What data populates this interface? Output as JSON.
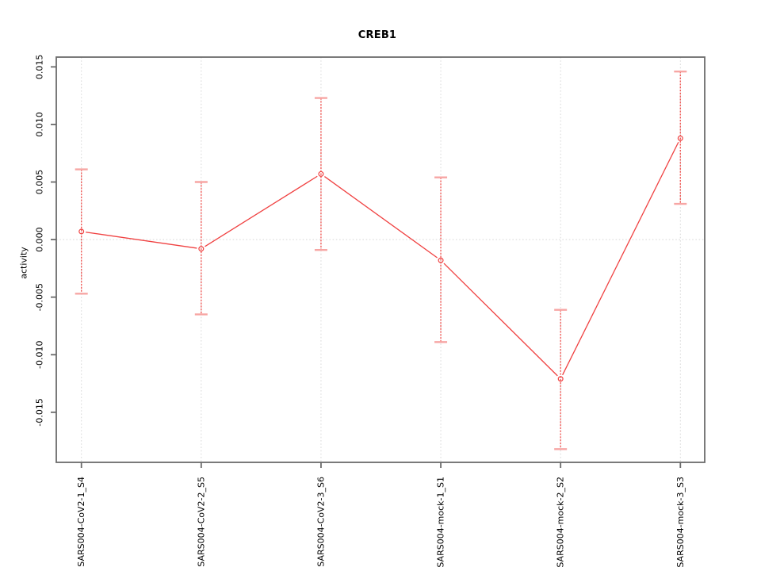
{
  "page": {
    "background": "#ffffff"
  },
  "chart_data": {
    "type": "line",
    "subtype": "errorbar-ci-plot",
    "title": "CREB1",
    "xlabel": "",
    "ylabel": "activity",
    "categories": [
      "SARS004-CoV2-1_S4",
      "SARS004-CoV2-2_S5",
      "SARS004-CoV2-3_S6",
      "SARS004-mock-1_S1",
      "SARS004-mock-2_S2",
      "SARS004-mock-3_S3"
    ],
    "series": [
      {
        "name": "CREB1 activity",
        "values": [
          0.0007,
          -0.0008,
          0.0057,
          -0.0018,
          -0.0121,
          0.0088
        ],
        "upper": [
          0.0061,
          0.005,
          0.0123,
          0.0054,
          -0.0061,
          0.0146
        ],
        "lower": [
          -0.0047,
          -0.0065,
          -0.0009,
          -0.0089,
          -0.0182,
          0.0031
        ]
      }
    ],
    "y_tick_values": [
      0.015,
      0.01,
      0.005,
      0.0,
      -0.005,
      -0.01,
      -0.015
    ],
    "y_tick_labels": [
      "0.015",
      "0.010",
      "0.005",
      "0.000",
      "-0.005",
      "-0.010",
      "-0.015"
    ],
    "ylim": [
      -0.01935,
      0.01585
    ],
    "grid": {
      "vertical_at_categories": true,
      "zero_line": true,
      "style": "dotted"
    },
    "legend": null,
    "marker": "open-circle",
    "line_style": "solid-with-gaps-at-points",
    "errorbar_style": "fine-dashed-with-caps",
    "colors": {
      "line": "#f04141",
      "marker": "#f04141",
      "errorbar": "#f15f5c",
      "cap": "#f7a6a4",
      "grid": "#d8d8d8",
      "axis_box": "#6b6b6b",
      "text": "#000000"
    }
  }
}
